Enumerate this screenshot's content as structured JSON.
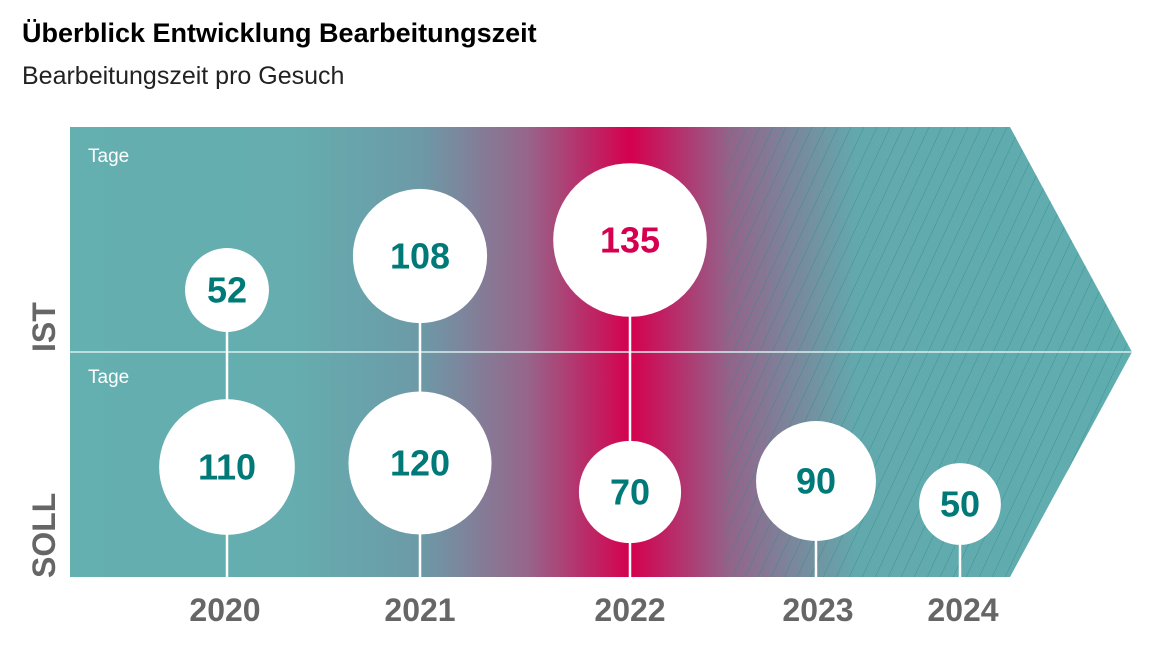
{
  "chart_data": {
    "type": "bubble",
    "title": "Überblick Entwicklung Bearbeitungszeit",
    "subtitle": "Bearbeitungszeit pro Gesuch",
    "unit": "Tage",
    "rows": [
      "IST",
      "SOLL"
    ],
    "categories": [
      "2020",
      "2021",
      "2022",
      "2023",
      "2024"
    ],
    "series": [
      {
        "name": "IST",
        "values": [
          52,
          108,
          135,
          null,
          null
        ]
      },
      {
        "name": "SOLL",
        "values": [
          110,
          120,
          70,
          90,
          50
        ]
      }
    ],
    "highlight_category": "2022",
    "projected_categories": [
      "2023",
      "2024"
    ]
  },
  "colors": {
    "teal": "#64afb0",
    "teal_text": "#007a78",
    "magenta": "#d5004f",
    "grey": "#666666"
  }
}
